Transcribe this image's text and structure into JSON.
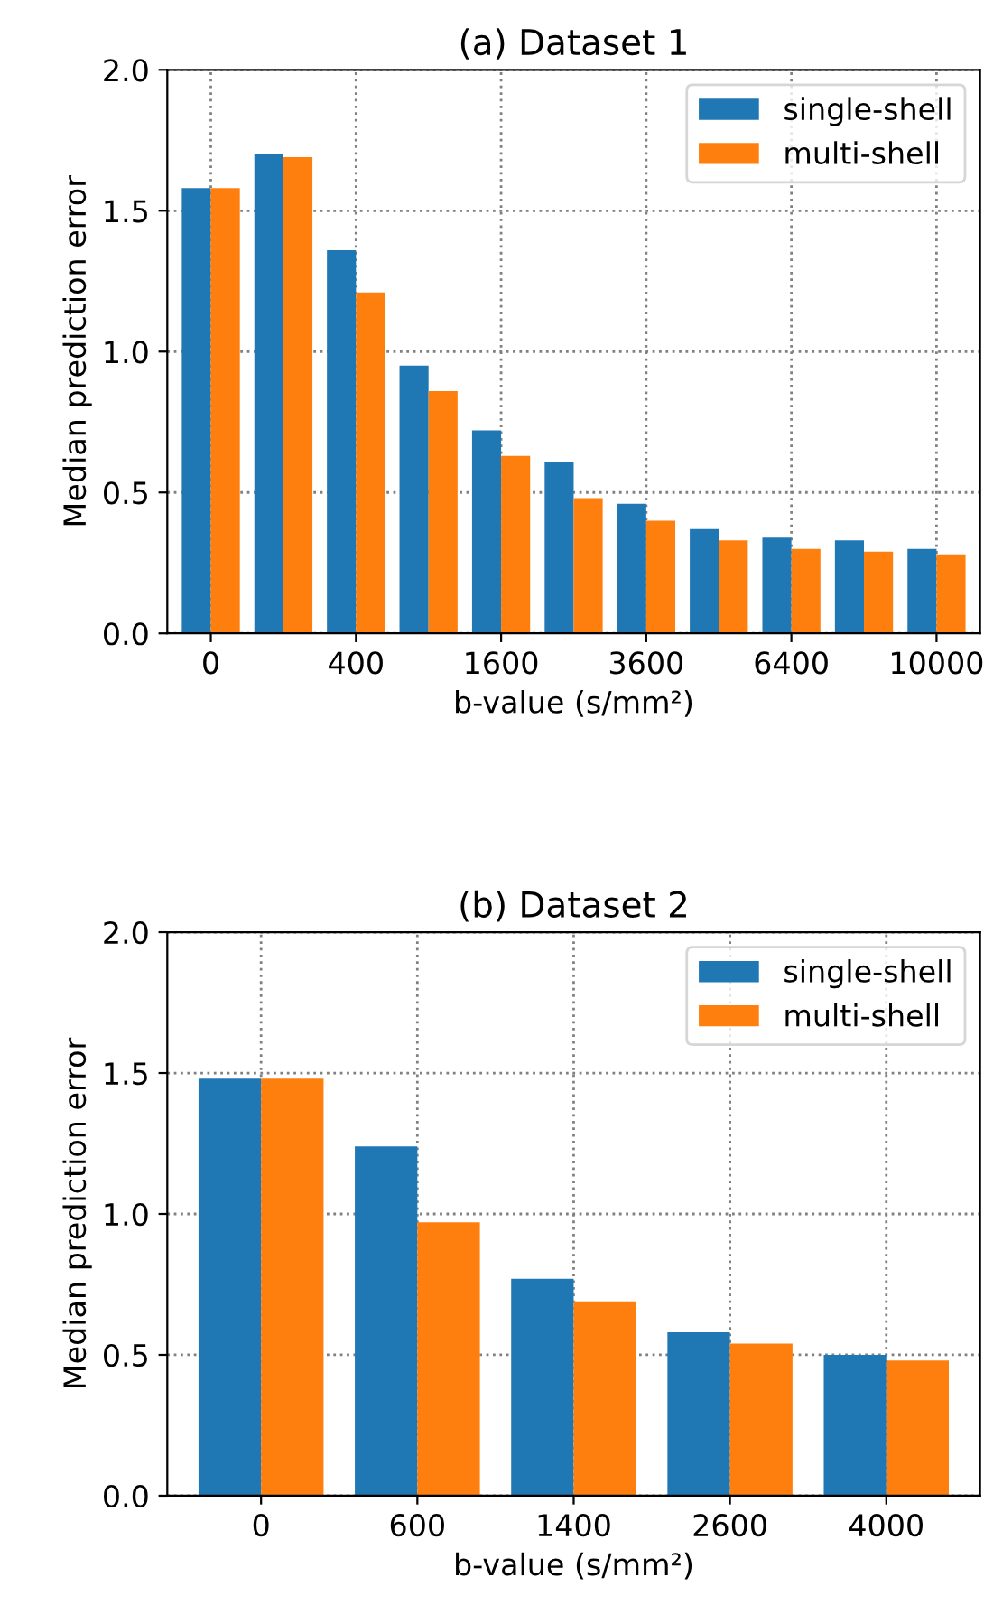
{
  "chart_data": [
    {
      "type": "bar",
      "title": "(a) Dataset 1",
      "xlabel": "b-value (s/mm²)",
      "ylabel": "Median prediction error",
      "categories": [
        "0",
        null,
        "400",
        null,
        "1600",
        null,
        "3600",
        null,
        "6400",
        null,
        "10000"
      ],
      "series": [
        {
          "name": "single-shell",
          "color": "#1f77b4",
          "values": [
            1.58,
            1.7,
            1.36,
            0.95,
            0.72,
            0.61,
            0.46,
            0.37,
            0.34,
            0.33,
            0.3
          ]
        },
        {
          "name": "multi-shell",
          "color": "#ff7f0e",
          "values": [
            1.58,
            1.69,
            1.21,
            0.86,
            0.63,
            0.48,
            0.4,
            0.33,
            0.3,
            0.29,
            0.28
          ]
        }
      ],
      "ylim": [
        0,
        2.0
      ],
      "yticks": [
        {
          "value": 0,
          "label": "0.0"
        },
        {
          "value": 0.5,
          "label": "0.5"
        },
        {
          "value": 1.0,
          "label": "1.0"
        },
        {
          "value": 1.5,
          "label": "1.5"
        },
        {
          "value": 2.0,
          "label": "2.0"
        }
      ],
      "grid": true,
      "legend": "top right"
    },
    {
      "type": "bar",
      "title": "(b) Dataset 2",
      "xlabel": "b-value (s/mm²)",
      "ylabel": "Median prediction error",
      "categories": [
        "0",
        "600",
        "1400",
        "2600",
        "4000"
      ],
      "series": [
        {
          "name": "single-shell",
          "color": "#1f77b4",
          "values": [
            1.48,
            1.24,
            0.77,
            0.58,
            0.5
          ]
        },
        {
          "name": "multi-shell",
          "color": "#ff7f0e",
          "values": [
            1.48,
            0.97,
            0.69,
            0.54,
            0.48
          ]
        }
      ],
      "ylim": [
        0,
        2.0
      ],
      "yticks": [
        {
          "value": 0,
          "label": "0.0"
        },
        {
          "value": 0.5,
          "label": "0.5"
        },
        {
          "value": 1.0,
          "label": "1.0"
        },
        {
          "value": 1.5,
          "label": "1.5"
        },
        {
          "value": 2.0,
          "label": "2.0"
        }
      ],
      "grid": true,
      "legend": "top right"
    }
  ]
}
